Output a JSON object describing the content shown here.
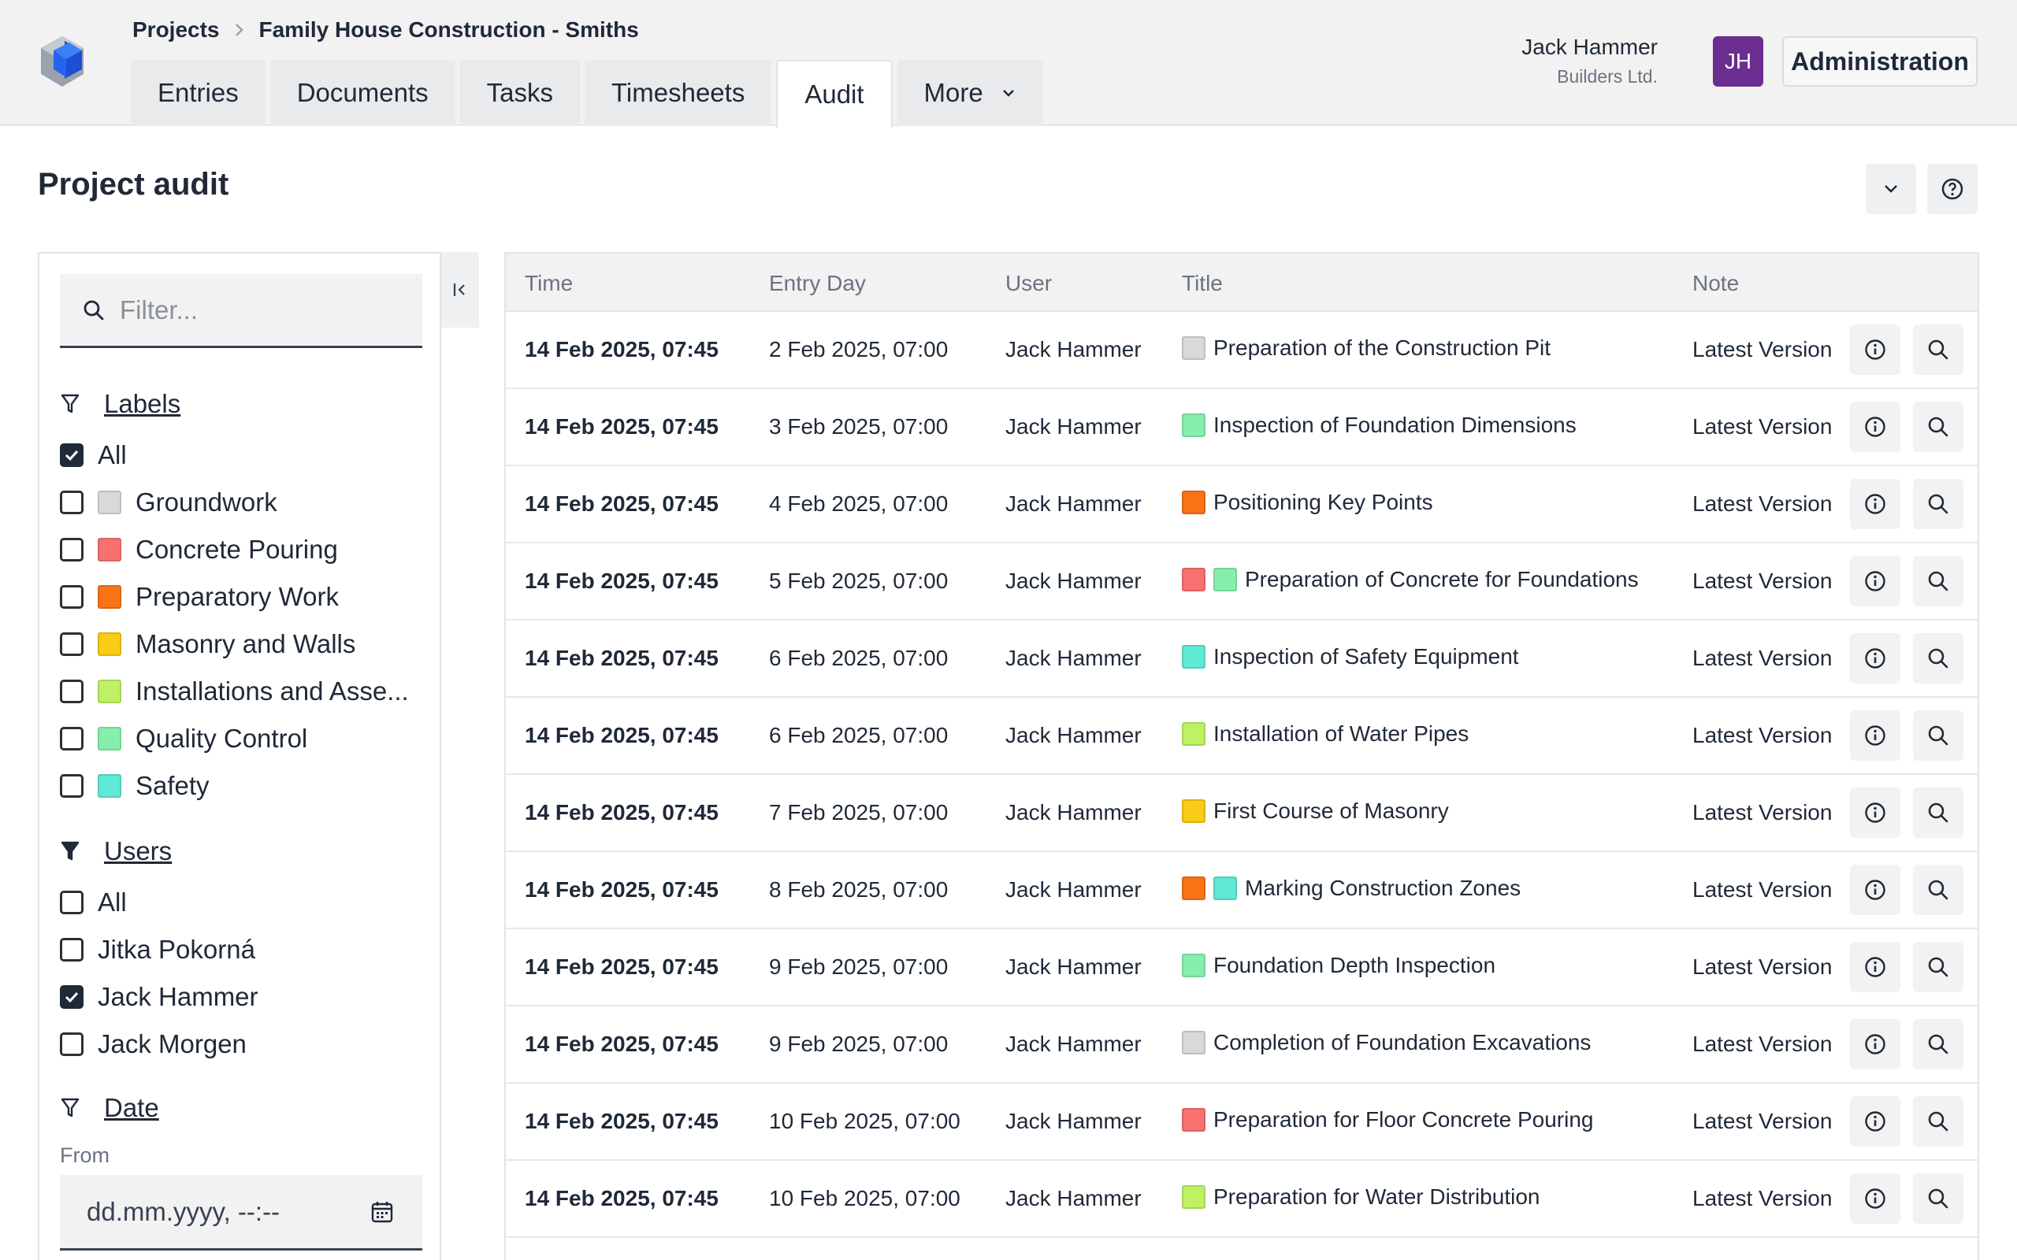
{
  "breadcrumb": {
    "root": "Projects",
    "current": "Family House Construction - Smiths"
  },
  "tabs": [
    {
      "label": "Entries"
    },
    {
      "label": "Documents"
    },
    {
      "label": "Tasks"
    },
    {
      "label": "Timesheets"
    },
    {
      "label": "Audit",
      "active": true
    },
    {
      "label": "More"
    }
  ],
  "user": {
    "name": "Jack Hammer",
    "company": "Builders Ltd.",
    "initials": "JH",
    "avatar_color": "#6b2d8f"
  },
  "admin_button": "Administration",
  "page_title": "Project audit",
  "sidebar": {
    "filter_placeholder": "Filter...",
    "labels_heading": "Labels",
    "labels": [
      {
        "label": "All",
        "checked": true,
        "color": null
      },
      {
        "label": "Groundwork",
        "checked": false,
        "color": "#d9d9d9"
      },
      {
        "label": "Concrete Pouring",
        "checked": false,
        "color": "#f87171"
      },
      {
        "label": "Preparatory Work",
        "checked": false,
        "color": "#f97316"
      },
      {
        "label": "Masonry and Walls",
        "checked": false,
        "color": "#facc15"
      },
      {
        "label": "Installations and Asse...",
        "checked": false,
        "color": "#bef264"
      },
      {
        "label": "Quality Control",
        "checked": false,
        "color": "#86efac"
      },
      {
        "label": "Safety",
        "checked": false,
        "color": "#5eead4"
      }
    ],
    "users_heading": "Users",
    "users": [
      {
        "label": "All",
        "checked": false
      },
      {
        "label": "Jitka Pokorná",
        "checked": false
      },
      {
        "label": "Jack Hammer",
        "checked": true
      },
      {
        "label": "Jack Morgen",
        "checked": false
      }
    ],
    "date_heading": "Date",
    "from_label": "From",
    "from_placeholder": "dd.mm.yyyy, --:--"
  },
  "table": {
    "columns": [
      "Time",
      "Entry Day",
      "User",
      "Title",
      "Note"
    ],
    "rows": [
      {
        "time": "14 Feb 2025, 07:45",
        "entry_day": "2 Feb 2025, 07:00",
        "user": "Jack Hammer",
        "title": "Preparation of the Construction Pit",
        "labels": [
          "#d9d9d9"
        ],
        "note": "Latest Version"
      },
      {
        "time": "14 Feb 2025, 07:45",
        "entry_day": "3 Feb 2025, 07:00",
        "user": "Jack Hammer",
        "title": "Inspection of Foundation Dimensions",
        "labels": [
          "#86efac"
        ],
        "note": "Latest Version"
      },
      {
        "time": "14 Feb 2025, 07:45",
        "entry_day": "4 Feb 2025, 07:00",
        "user": "Jack Hammer",
        "title": "Positioning Key Points",
        "labels": [
          "#f97316"
        ],
        "note": "Latest Version"
      },
      {
        "time": "14 Feb 2025, 07:45",
        "entry_day": "5 Feb 2025, 07:00",
        "user": "Jack Hammer",
        "title": "Preparation of Concrete for Foundations",
        "labels": [
          "#f87171",
          "#86efac"
        ],
        "note": "Latest Version"
      },
      {
        "time": "14 Feb 2025, 07:45",
        "entry_day": "6 Feb 2025, 07:00",
        "user": "Jack Hammer",
        "title": "Inspection of Safety Equipment",
        "labels": [
          "#5eead4"
        ],
        "note": "Latest Version"
      },
      {
        "time": "14 Feb 2025, 07:45",
        "entry_day": "6 Feb 2025, 07:00",
        "user": "Jack Hammer",
        "title": "Installation of Water Pipes",
        "labels": [
          "#bef264"
        ],
        "note": "Latest Version"
      },
      {
        "time": "14 Feb 2025, 07:45",
        "entry_day": "7 Feb 2025, 07:00",
        "user": "Jack Hammer",
        "title": "First Course of Masonry",
        "labels": [
          "#facc15"
        ],
        "note": "Latest Version"
      },
      {
        "time": "14 Feb 2025, 07:45",
        "entry_day": "8 Feb 2025, 07:00",
        "user": "Jack Hammer",
        "title": "Marking Construction Zones",
        "labels": [
          "#f97316",
          "#5eead4"
        ],
        "note": "Latest Version"
      },
      {
        "time": "14 Feb 2025, 07:45",
        "entry_day": "9 Feb 2025, 07:00",
        "user": "Jack Hammer",
        "title": "Foundation Depth Inspection",
        "labels": [
          "#86efac"
        ],
        "note": "Latest Version"
      },
      {
        "time": "14 Feb 2025, 07:45",
        "entry_day": "9 Feb 2025, 07:00",
        "user": "Jack Hammer",
        "title": "Completion of Foundation Excavations",
        "labels": [
          "#d9d9d9"
        ],
        "note": "Latest Version"
      },
      {
        "time": "14 Feb 2025, 07:45",
        "entry_day": "10 Feb 2025, 07:00",
        "user": "Jack Hammer",
        "title": "Preparation for Floor Concrete Pouring",
        "labels": [
          "#f87171"
        ],
        "note": "Latest Version"
      },
      {
        "time": "14 Feb 2025, 07:45",
        "entry_day": "10 Feb 2025, 07:00",
        "user": "Jack Hammer",
        "title": "Preparation for Water Distribution",
        "labels": [
          "#bef264"
        ],
        "note": "Latest Version"
      }
    ]
  }
}
